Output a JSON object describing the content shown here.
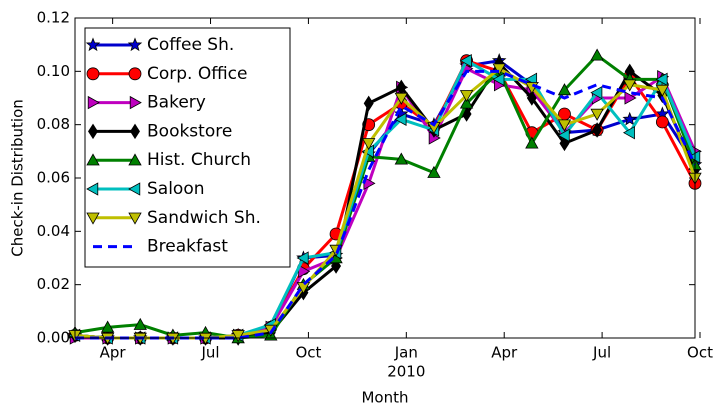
{
  "chart_data": {
    "type": "line",
    "y_label": "Check-in Distribution",
    "x_label": "Month",
    "year_label": "2010",
    "categories": [
      null,
      "Apr",
      null,
      null,
      "Jul",
      null,
      null,
      "Oct",
      null,
      null,
      "Jan",
      null,
      null,
      "Apr",
      null,
      null,
      "Jul",
      null,
      null,
      "Oct"
    ],
    "ylim": [
      0,
      0.12
    ],
    "yticks": [
      {
        "value": 0,
        "label": "0.00"
      },
      {
        "value": 0.02,
        "label": "0.02"
      },
      {
        "value": 0.04,
        "label": "0.04"
      },
      {
        "value": 0.06,
        "label": "0.06"
      },
      {
        "value": 0.08,
        "label": "0.08"
      },
      {
        "value": 0.1,
        "label": "0.10"
      },
      {
        "value": 0.12,
        "label": "0.12"
      }
    ],
    "legend": "upper left",
    "series": [
      {
        "name": "Coffee Sh.",
        "color": "#0000cc",
        "marker": "star",
        "values": [
          0.001,
          0,
          0,
          0,
          0,
          0.001,
          0.004,
          0.03,
          0.031,
          0.069,
          0.084,
          0.08,
          0.102,
          0.104,
          0.095,
          0.077,
          0.078,
          0.082,
          0.084,
          0.065
        ]
      },
      {
        "name": "Corp. Office",
        "color": "#ff0000",
        "marker": "circle",
        "values": [
          0.001,
          0,
          0,
          0,
          0,
          0.001,
          0.004,
          0.026,
          0.039,
          0.08,
          0.088,
          0.079,
          0.104,
          0.1,
          0.077,
          0.084,
          0.078,
          0.098,
          0.081,
          0.058
        ]
      },
      {
        "name": "Bakery",
        "color": "#bf00bf",
        "marker": "triangle-right",
        "values": [
          0,
          0,
          0,
          0,
          0,
          0.001,
          0.004,
          0.025,
          0.03,
          0.058,
          0.094,
          0.075,
          0.101,
          0.095,
          0.093,
          0.077,
          0.09,
          0.09,
          0.098,
          0.07
        ]
      },
      {
        "name": "Bookstore",
        "color": "#000000",
        "marker": "thin-diamond",
        "values": [
          0.001,
          0,
          0,
          0,
          0,
          0,
          0.002,
          0.017,
          0.027,
          0.088,
          0.094,
          0.078,
          0.084,
          0.103,
          0.09,
          0.073,
          0.078,
          0.1,
          0.091,
          0.063
        ]
      },
      {
        "name": "Hist. Church",
        "color": "#008000",
        "marker": "triangle-up",
        "values": [
          0.002,
          0.004,
          0.005,
          0.001,
          0.002,
          0,
          0.001,
          0.02,
          0.03,
          0.068,
          0.067,
          0.062,
          0.088,
          0.1,
          0.073,
          0.093,
          0.106,
          0.097,
          0.097,
          0.065
        ]
      },
      {
        "name": "Saloon",
        "color": "#00bfbf",
        "marker": "triangle-left",
        "values": [
          0.001,
          0,
          0,
          0,
          0,
          0.001,
          0.005,
          0.03,
          0.032,
          0.07,
          0.082,
          0.078,
          0.104,
          0.097,
          0.097,
          0.076,
          0.092,
          0.077,
          0.097,
          0.068
        ]
      },
      {
        "name": "Sandwich Sh.",
        "color": "#bfbf00",
        "marker": "triangle-down",
        "values": [
          0.001,
          0,
          0,
          0,
          0,
          0.001,
          0.003,
          0.019,
          0.033,
          0.073,
          0.09,
          0.079,
          0.091,
          0.101,
          0.094,
          0.08,
          0.084,
          0.095,
          0.093,
          0.06
        ]
      },
      {
        "name": "Breakfast",
        "color": "#0000ff",
        "marker": "none",
        "linestyle": "dashed",
        "values": [
          0,
          0,
          0,
          0,
          0,
          0,
          0.002,
          0.02,
          0.031,
          0.063,
          0.087,
          0.08,
          0.1,
          0.1,
          0.095,
          0.09,
          0.095,
          0.092,
          0.09,
          0.065
        ]
      }
    ]
  }
}
